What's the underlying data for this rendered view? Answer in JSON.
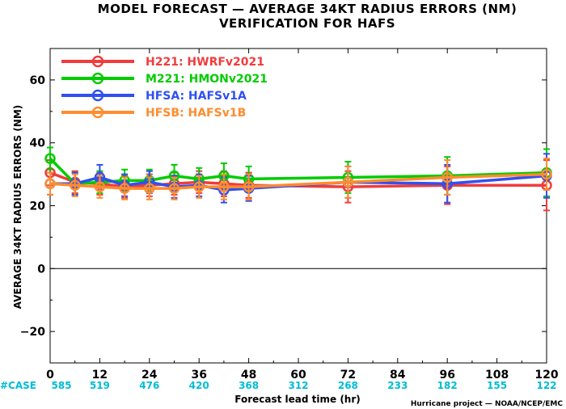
{
  "chart_data": {
    "type": "line",
    "title": "MODEL FORECAST — AVERAGE 34KT RADIUS ERRORS (NM)",
    "subtitle": "VERIFICATION FOR HAFS",
    "xlabel": "Forecast lead time (hr)",
    "ylabel": "AVERAGE 34KT RADIUS ERRORS (NM)",
    "xlim": [
      0,
      120
    ],
    "ylim": [
      -30,
      70
    ],
    "x_ticks": [
      0,
      12,
      24,
      36,
      48,
      60,
      72,
      84,
      96,
      108,
      120
    ],
    "y_ticks": [
      -20,
      0,
      20,
      40,
      60
    ],
    "zero_line": true,
    "grid": false,
    "legend_position": "top-left",
    "x": [
      0,
      6,
      12,
      18,
      24,
      30,
      36,
      42,
      48,
      72,
      96,
      120
    ],
    "series": [
      {
        "name": "H221: HWRFv2021",
        "color": "#f03c3c",
        "values": [
          30.5,
          27.5,
          27,
          26,
          26.5,
          27,
          27.5,
          27,
          26.5,
          26,
          26.5,
          26.5
        ],
        "errors": [
          4,
          3.5,
          3.5,
          3.5,
          3.5,
          3.5,
          3.5,
          4,
          4,
          5,
          6,
          8
        ]
      },
      {
        "name": "M221: HMONv2021",
        "color": "#00cc00",
        "values": [
          35,
          27,
          27.5,
          28,
          28,
          29.5,
          28.5,
          29.5,
          28.5,
          29,
          29.5,
          30.5
        ],
        "errors": [
          3.5,
          3.5,
          3.5,
          3.5,
          3.5,
          3.5,
          3.5,
          4,
          4,
          5,
          6,
          7.5
        ]
      },
      {
        "name": "HFSA: HAFSv1A",
        "color": "#3050f0",
        "values": [
          27,
          27,
          29,
          26.5,
          27.5,
          26,
          26.5,
          25,
          25.5,
          27.5,
          27,
          29.5
        ],
        "errors": [
          3.5,
          3.5,
          4,
          3.5,
          3.5,
          3.5,
          3.5,
          4,
          4,
          5,
          6,
          7
        ]
      },
      {
        "name": "HFSB: HAFSv1B",
        "color": "#ff8c2e",
        "values": [
          27,
          26.5,
          26,
          25.5,
          25.5,
          25.5,
          26,
          26,
          26,
          27.5,
          29,
          30
        ],
        "errors": [
          3.5,
          3.5,
          3.5,
          3.5,
          3.5,
          3.5,
          3.5,
          4,
          4,
          5,
          5.5,
          5
        ]
      }
    ],
    "case_label": "#CASE",
    "case_counts": [
      {
        "x": 0,
        "n": "585"
      },
      {
        "x": 12,
        "n": "519"
      },
      {
        "x": 24,
        "n": "476"
      },
      {
        "x": 36,
        "n": "420"
      },
      {
        "x": 48,
        "n": "368"
      },
      {
        "x": 60,
        "n": "312"
      },
      {
        "x": 72,
        "n": "268"
      },
      {
        "x": 84,
        "n": "233"
      },
      {
        "x": 96,
        "n": "182"
      },
      {
        "x": 108,
        "n": "155"
      },
      {
        "x": 120,
        "n": "122"
      }
    ],
    "credit": "Hurricane project — NOAA/NCEP/EMC"
  }
}
